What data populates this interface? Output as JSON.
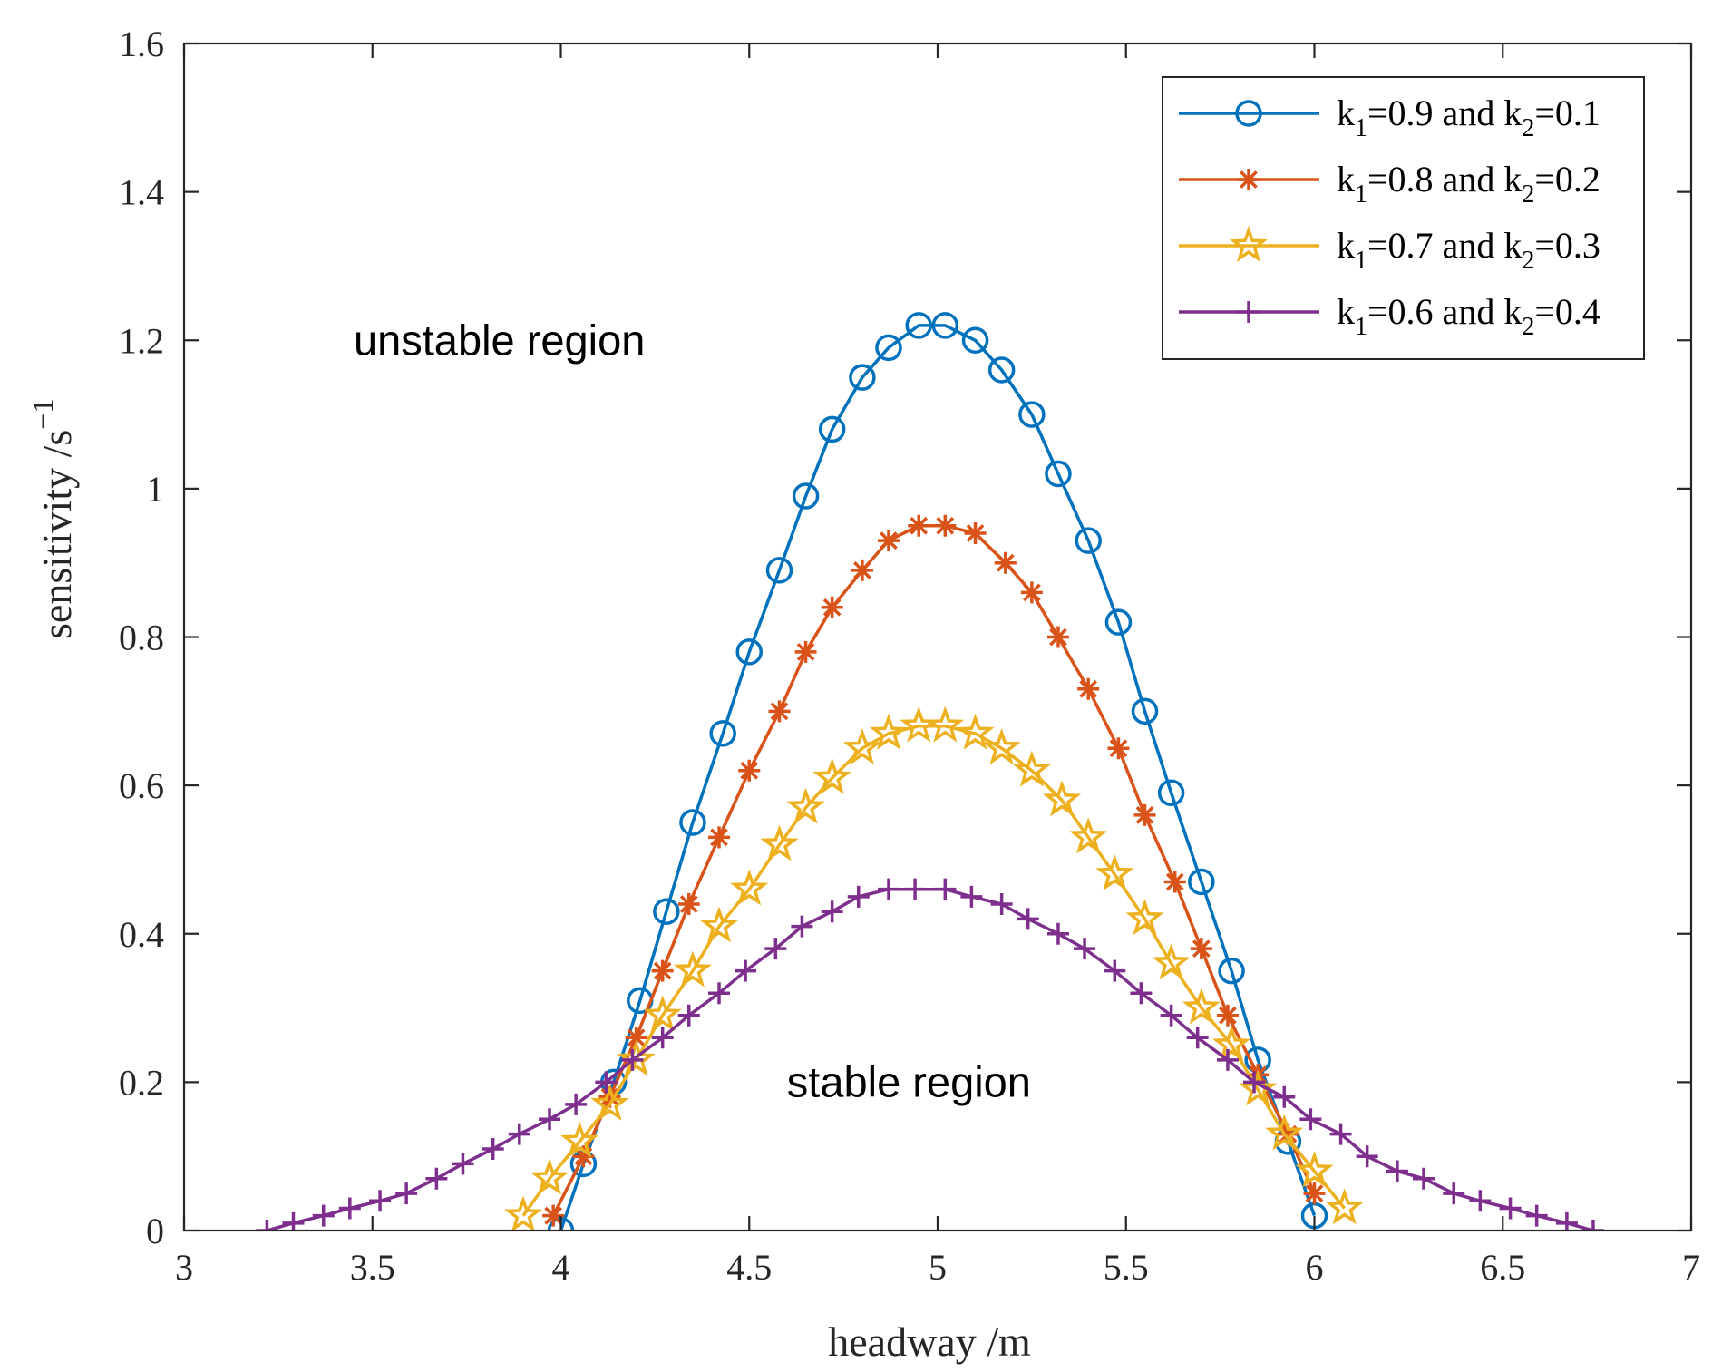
{
  "chart_data": {
    "type": "line",
    "xlabel": "headway /m",
    "ylabel": "sensitivity /s",
    "ylabel_exponent": "−1",
    "xlim": [
      3,
      7
    ],
    "ylim": [
      0,
      1.6
    ],
    "xticks": [
      3,
      3.5,
      4,
      4.5,
      5,
      5.5,
      6,
      6.5,
      7
    ],
    "xtick_labels": [
      "3",
      "3.5",
      "4",
      "4.5",
      "5",
      "5.5",
      "6",
      "6.5",
      "7"
    ],
    "yticks": [
      0,
      0.2,
      0.4,
      0.6,
      0.8,
      1,
      1.2,
      1.4,
      1.6
    ],
    "ytick_labels": [
      "0",
      "0.2",
      "0.4",
      "0.6",
      "0.8",
      "1",
      "1.2",
      "1.4",
      "1.6"
    ],
    "legend_position": "top-right",
    "annotations": [
      {
        "text": "unstable region",
        "x": 3.45,
        "y": 1.2
      },
      {
        "text": "stable region",
        "x": 4.6,
        "y": 0.2
      }
    ],
    "series": [
      {
        "name": "k1=0.9 and k2=0.1",
        "legend": {
          "k1_sub": "1",
          "k1_val": "=0.9 and k",
          "k2_sub": "2",
          "k2_val": "=0.1"
        },
        "color": "#0072BD",
        "marker": "circle",
        "x": [
          4.0,
          4.06,
          4.14,
          4.21,
          4.28,
          4.35,
          4.43,
          4.5,
          4.58,
          4.65,
          4.72,
          4.8,
          4.87,
          4.95,
          5.02,
          5.1,
          5.17,
          5.25,
          5.32,
          5.4,
          5.48,
          5.55,
          5.62,
          5.7,
          5.78,
          5.85,
          5.93,
          6.0
        ],
        "y": [
          0.0,
          0.09,
          0.2,
          0.31,
          0.43,
          0.55,
          0.67,
          0.78,
          0.89,
          0.99,
          1.08,
          1.15,
          1.19,
          1.22,
          1.22,
          1.2,
          1.16,
          1.1,
          1.02,
          0.93,
          0.82,
          0.7,
          0.59,
          0.47,
          0.35,
          0.23,
          0.12,
          0.02
        ]
      },
      {
        "name": "k1=0.8 and k2=0.2",
        "legend": {
          "k1_sub": "1",
          "k1_val": "=0.8 and k",
          "k2_sub": "2",
          "k2_val": "=0.2"
        },
        "color": "#D95319",
        "marker": "asterisk",
        "x": [
          3.98,
          4.06,
          4.13,
          4.2,
          4.27,
          4.34,
          4.42,
          4.5,
          4.58,
          4.65,
          4.72,
          4.8,
          4.87,
          4.95,
          5.02,
          5.1,
          5.18,
          5.25,
          5.32,
          5.4,
          5.48,
          5.55,
          5.63,
          5.7,
          5.77,
          5.85,
          5.93,
          6.0
        ],
        "y": [
          0.02,
          0.1,
          0.18,
          0.26,
          0.35,
          0.44,
          0.53,
          0.62,
          0.7,
          0.78,
          0.84,
          0.89,
          0.93,
          0.95,
          0.95,
          0.94,
          0.9,
          0.86,
          0.8,
          0.73,
          0.65,
          0.56,
          0.47,
          0.38,
          0.29,
          0.21,
          0.13,
          0.05
        ]
      },
      {
        "name": "k1=0.7 and k2=0.3",
        "legend": {
          "k1_sub": "1",
          "k1_val": "=0.7 and k",
          "k2_sub": "2",
          "k2_val": "=0.3"
        },
        "color": "#EDB120",
        "marker": "star",
        "x": [
          3.9,
          3.97,
          4.05,
          4.13,
          4.2,
          4.27,
          4.35,
          4.42,
          4.5,
          4.58,
          4.65,
          4.72,
          4.8,
          4.87,
          4.95,
          5.02,
          5.1,
          5.17,
          5.25,
          5.33,
          5.4,
          5.47,
          5.55,
          5.62,
          5.7,
          5.78,
          5.85,
          5.92,
          6.0,
          6.08
        ],
        "y": [
          0.02,
          0.07,
          0.12,
          0.17,
          0.23,
          0.29,
          0.35,
          0.41,
          0.46,
          0.52,
          0.57,
          0.61,
          0.65,
          0.67,
          0.68,
          0.68,
          0.67,
          0.65,
          0.62,
          0.58,
          0.53,
          0.48,
          0.42,
          0.36,
          0.3,
          0.25,
          0.19,
          0.13,
          0.08,
          0.03
        ]
      },
      {
        "name": "k1=0.6 and k2=0.4",
        "legend": {
          "k1_sub": "1",
          "k1_val": "=0.6 and k",
          "k2_sub": "2",
          "k2_val": "=0.4"
        },
        "color": "#7E2F8E",
        "marker": "plus",
        "x": [
          3.22,
          3.29,
          3.37,
          3.44,
          3.52,
          3.59,
          3.67,
          3.74,
          3.82,
          3.89,
          3.97,
          4.04,
          4.12,
          4.19,
          4.27,
          4.34,
          4.42,
          4.49,
          4.57,
          4.64,
          4.72,
          4.79,
          4.87,
          4.94,
          5.02,
          5.09,
          5.17,
          5.24,
          5.32,
          5.39,
          5.47,
          5.54,
          5.62,
          5.69,
          5.77,
          5.84,
          5.92,
          5.99,
          6.07,
          6.14,
          6.22,
          6.29,
          6.37,
          6.44,
          6.52,
          6.59,
          6.67,
          6.74
        ],
        "y": [
          0.0,
          0.01,
          0.02,
          0.03,
          0.04,
          0.05,
          0.07,
          0.09,
          0.11,
          0.13,
          0.15,
          0.17,
          0.2,
          0.23,
          0.26,
          0.29,
          0.32,
          0.35,
          0.38,
          0.41,
          0.43,
          0.45,
          0.46,
          0.46,
          0.46,
          0.45,
          0.44,
          0.42,
          0.4,
          0.38,
          0.35,
          0.32,
          0.29,
          0.26,
          0.23,
          0.2,
          0.18,
          0.15,
          0.13,
          0.1,
          0.08,
          0.07,
          0.05,
          0.04,
          0.03,
          0.02,
          0.01,
          0.0
        ]
      }
    ]
  }
}
